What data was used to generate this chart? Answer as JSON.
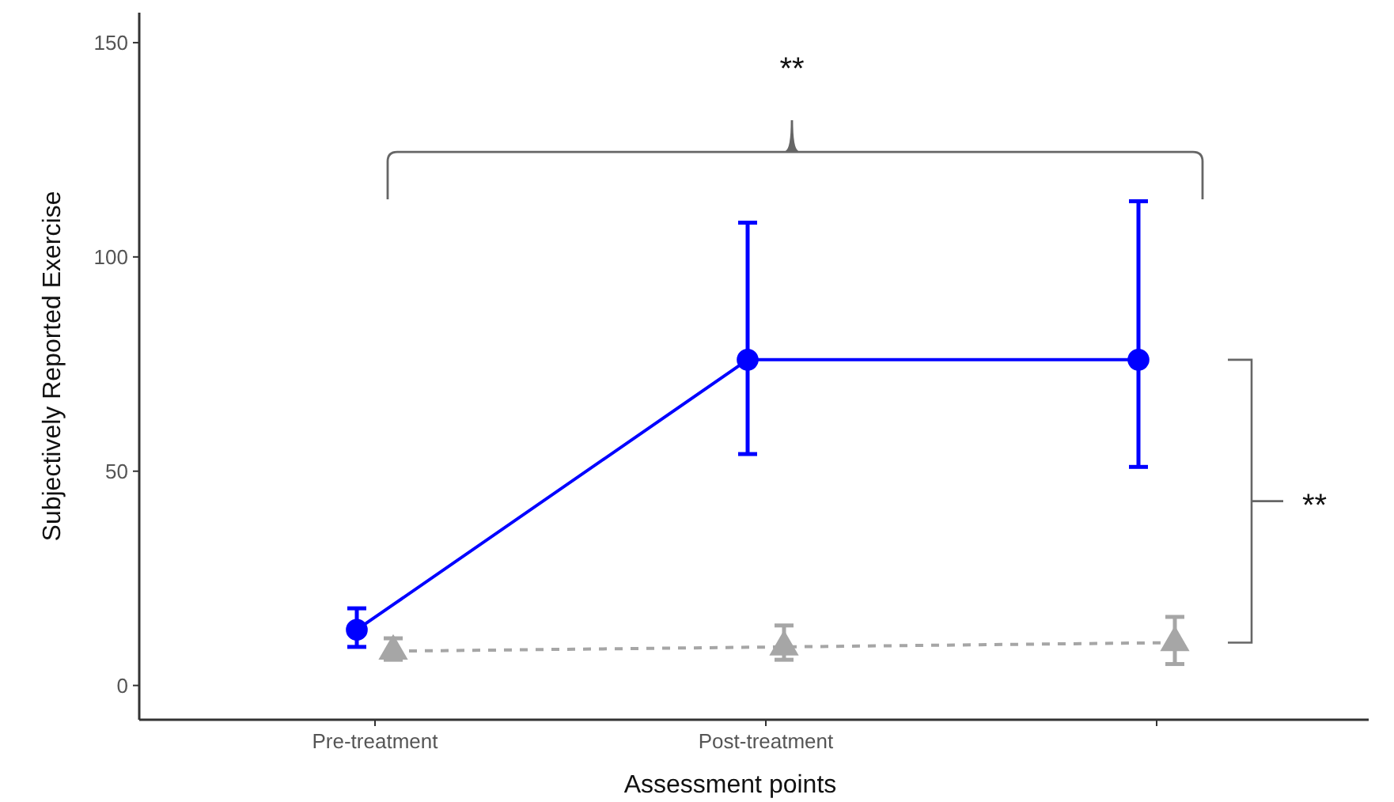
{
  "chart_data": {
    "type": "line",
    "xlabel": "Assessment points",
    "ylabel": "Subjectively Reported Exercise",
    "categories": [
      "Pre-treatment",
      "Post-treatment",
      null
    ],
    "series": [
      {
        "color": "#0000ff",
        "values": [
          13,
          76,
          76
        ],
        "errors": [
          [
            9,
            18
          ],
          [
            54,
            108
          ],
          [
            51,
            113
          ]
        ],
        "marker": "circle",
        "line_style": "solid"
      },
      {
        "color": "#a6a6a6",
        "values": [
          8,
          9,
          10
        ],
        "errors": [
          [
            6,
            11
          ],
          [
            6,
            14
          ],
          [
            5,
            16
          ]
        ],
        "marker": "triangle",
        "line_style": "dashed"
      }
    ],
    "ylim": [
      -8,
      157
    ],
    "yticks": [
      0,
      50,
      100,
      150
    ],
    "grid": false,
    "annotations": [
      "**",
      "**"
    ]
  }
}
